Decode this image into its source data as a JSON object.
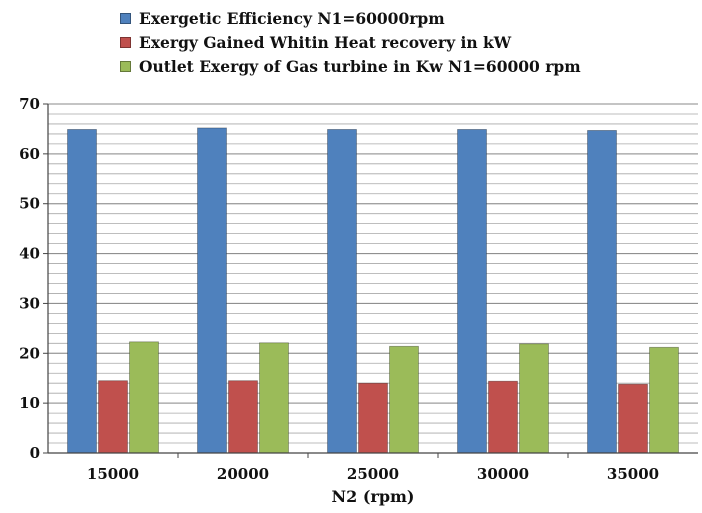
{
  "chart_data": {
    "type": "bar",
    "title": "",
    "xlabel": "N2 (rpm)",
    "ylabel": "",
    "categories": [
      "15000",
      "20000",
      "25000",
      "30000",
      "35000"
    ],
    "ylim": [
      0,
      70
    ],
    "yticks": [
      0,
      10,
      20,
      30,
      40,
      50,
      60,
      70
    ],
    "minor_grid_step": 2,
    "grid": true,
    "legend_position": "top",
    "series": [
      {
        "name": "Exergetic Efficiency N1=60000rpm",
        "color": "#4f81bd",
        "values": [
          64.9,
          65.2,
          64.9,
          64.9,
          64.7
        ]
      },
      {
        "name": "Exergy Gained Whitin Heat recovery in kW",
        "color": "#c0504d",
        "values": [
          14.5,
          14.5,
          14.0,
          14.4,
          13.8
        ]
      },
      {
        "name": "Outlet Exergy of Gas turbine in Kw N1=60000 rpm",
        "color": "#9bbb59",
        "values": [
          22.3,
          22.1,
          21.4,
          21.9,
          21.2
        ]
      }
    ]
  }
}
